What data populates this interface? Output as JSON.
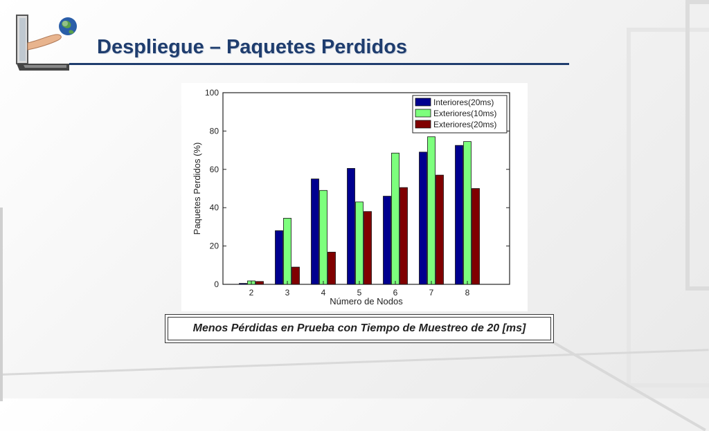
{
  "slide": {
    "title": "Despliegue – Paquetes Perdidos",
    "caption": "Menos Pérdidas en Prueba con Tiempo de Muestreo de 20 [ms]",
    "logo_icon": "laptop-hand-globe-icon",
    "title_color": "#1f3d6e"
  },
  "chart_data": {
    "type": "bar",
    "title": "",
    "xlabel": "Número de Nodos",
    "ylabel": "Paquetes Perdidos (%)",
    "categories": [
      "2",
      "3",
      "4",
      "5",
      "6",
      "7",
      "8"
    ],
    "ylim": [
      0,
      100
    ],
    "yticks": [
      "0",
      "20",
      "40",
      "60",
      "80",
      "100"
    ],
    "legend_position": "top-right",
    "grid": false,
    "series": [
      {
        "name": "Interiores(20ms)",
        "color": "#00008f",
        "values": [
          0.5,
          28,
          55,
          60.5,
          46,
          69,
          72.5
        ]
      },
      {
        "name": "Exteriores(10ms)",
        "color": "#7dff7d",
        "values": [
          1.8,
          34.5,
          49,
          43,
          68.5,
          77,
          74.5
        ]
      },
      {
        "name": "Exteriores(20ms)",
        "color": "#800000",
        "values": [
          1.5,
          9,
          16.8,
          38,
          50.5,
          57,
          50
        ]
      }
    ]
  }
}
